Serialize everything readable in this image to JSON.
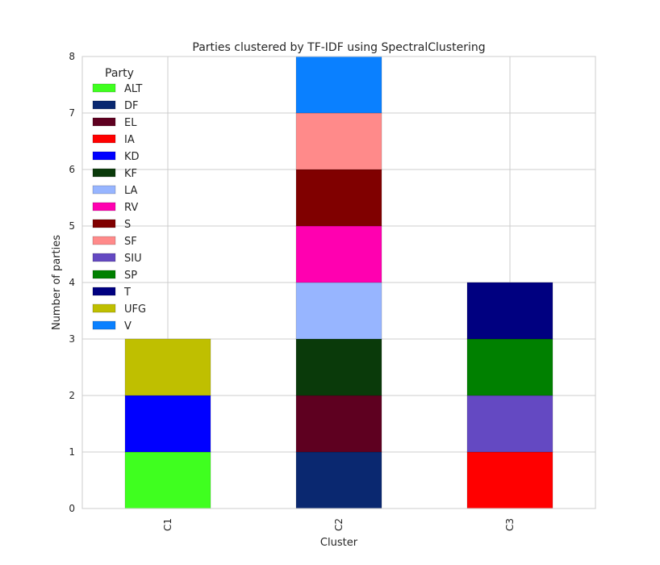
{
  "chart_data": {
    "type": "bar",
    "stacked": true,
    "title": "Parties clustered by TF-IDF using SpectralClustering",
    "xlabel": "Cluster",
    "ylabel": "Number of parties",
    "categories": [
      "C1",
      "C2",
      "C3"
    ],
    "ylim": [
      0,
      8
    ],
    "yticks": [
      "0",
      "1",
      "2",
      "3",
      "4",
      "5",
      "6",
      "7",
      "8"
    ],
    "grid": true,
    "legend": {
      "title": "Party",
      "placement": "top-left"
    },
    "series": [
      {
        "name": "ALT",
        "color": "#3fff1f",
        "values": [
          1,
          0,
          0
        ]
      },
      {
        "name": "DF",
        "color": "#0a2870",
        "values": [
          0,
          1,
          0
        ]
      },
      {
        "name": "EL",
        "color": "#5e0020",
        "values": [
          0,
          1,
          0
        ]
      },
      {
        "name": "IA",
        "color": "#ff0000",
        "values": [
          0,
          0,
          1
        ]
      },
      {
        "name": "KD",
        "color": "#0000ff",
        "values": [
          1,
          0,
          0
        ]
      },
      {
        "name": "KF",
        "color": "#0a3a0a",
        "values": [
          0,
          1,
          0
        ]
      },
      {
        "name": "LA",
        "color": "#97b5ff",
        "values": [
          0,
          1,
          0
        ]
      },
      {
        "name": "RV",
        "color": "#ff00b0",
        "values": [
          0,
          1,
          0
        ]
      },
      {
        "name": "S",
        "color": "#800000",
        "values": [
          0,
          1,
          0
        ]
      },
      {
        "name": "SF",
        "color": "#ff8a8a",
        "values": [
          0,
          1,
          0
        ]
      },
      {
        "name": "SIU",
        "color": "#6449c2",
        "values": [
          0,
          0,
          1
        ]
      },
      {
        "name": "SP",
        "color": "#008000",
        "values": [
          0,
          0,
          1
        ]
      },
      {
        "name": "T",
        "color": "#000080",
        "values": [
          0,
          0,
          1
        ]
      },
      {
        "name": "UFG",
        "color": "#bfbf00",
        "values": [
          1,
          0,
          0
        ]
      },
      {
        "name": "V",
        "color": "#0a80ff",
        "values": [
          0,
          1,
          0
        ]
      }
    ]
  }
}
